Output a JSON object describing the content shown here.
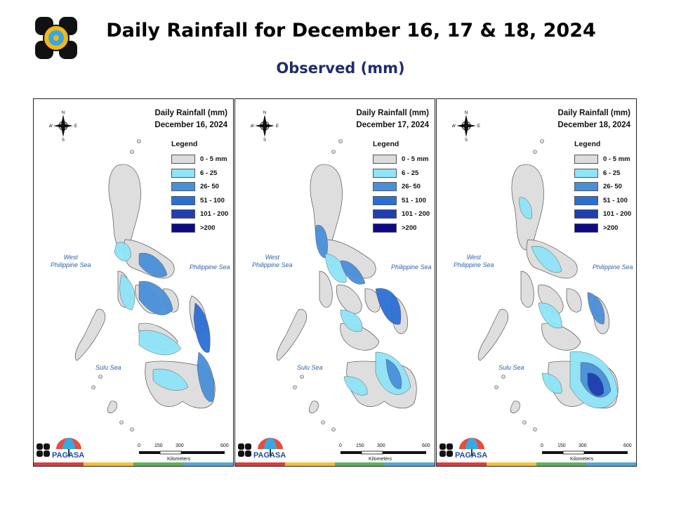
{
  "header": {
    "title": "Daily Rainfall for December 16, 17 & 18, 2024",
    "subtitle": "Observed (mm)"
  },
  "legend_template": {
    "title": "Legend",
    "items": [
      {
        "label": "0 - 5 mm",
        "color": "#dcdcdc"
      },
      {
        "label": "6 - 25",
        "color": "#8ee4f8"
      },
      {
        "label": "26- 50",
        "color": "#4a90d9"
      },
      {
        "label": "51 - 100",
        "color": "#2c6fd4"
      },
      {
        "label": "101 - 200",
        "color": "#1f3fb0"
      },
      {
        "label": ">200",
        "color": "#0d0a8a"
      }
    ]
  },
  "panels": [
    {
      "map_title_line1": "Daily Rainfall (mm)",
      "map_title_line2": "December 16, 2024",
      "legend_title": "Legend",
      "legend": [
        "0 - 5 mm",
        "6 - 25",
        "26- 50",
        "51 - 100",
        "101 - 200",
        ">200"
      ],
      "seas": {
        "west": "West\nPhilippine Sea",
        "phil": "Philippine Sea",
        "sulu": "Sulu Sea"
      },
      "compass": {
        "n": "N",
        "s": "S",
        "e": "E",
        "w": "W"
      },
      "scale": {
        "ticks": [
          "0",
          "150",
          "300",
          "600"
        ],
        "unit": "Kilometers"
      },
      "pagasa_label": "PAGASA"
    },
    {
      "map_title_line1": "Daily Rainfall (mm)",
      "map_title_line2": "December 17, 2024",
      "legend_title": "Legend",
      "legend": [
        "0 - 5 mm",
        "6 - 25",
        "26- 50",
        "51 - 100",
        "101 - 200",
        ">200"
      ],
      "seas": {
        "west": "West\nPhilippine Sea",
        "phil": "Philippine Sea",
        "sulu": "Sulu Sea"
      },
      "compass": {
        "n": "N",
        "s": "S",
        "e": "E",
        "w": "W"
      },
      "scale": {
        "ticks": [
          "0",
          "150",
          "300",
          "600"
        ],
        "unit": "Kilometers"
      },
      "pagasa_label": "PAGASA"
    },
    {
      "map_title_line1": "Daily Rainfall (mm)",
      "map_title_line2": "December 18, 2024",
      "legend_title": "Legend",
      "legend": [
        "0 - 5 mm",
        "6 - 25",
        "26- 50",
        "51 - 100",
        "101 - 200",
        ">200"
      ],
      "seas": {
        "west": "West\nPhilippine Sea",
        "phil": "Philippine Sea",
        "sulu": "Sulu Sea"
      },
      "compass": {
        "n": "N",
        "s": "S",
        "e": "E",
        "w": "W"
      },
      "scale": {
        "ticks": [
          "0",
          "150",
          "300",
          "600"
        ],
        "unit": "Kilometers"
      },
      "pagasa_label": "PAGASA"
    }
  ],
  "strip_colors": [
    "#e03c3c",
    "#f2c230",
    "#5bb35b",
    "#4fa8dc"
  ]
}
